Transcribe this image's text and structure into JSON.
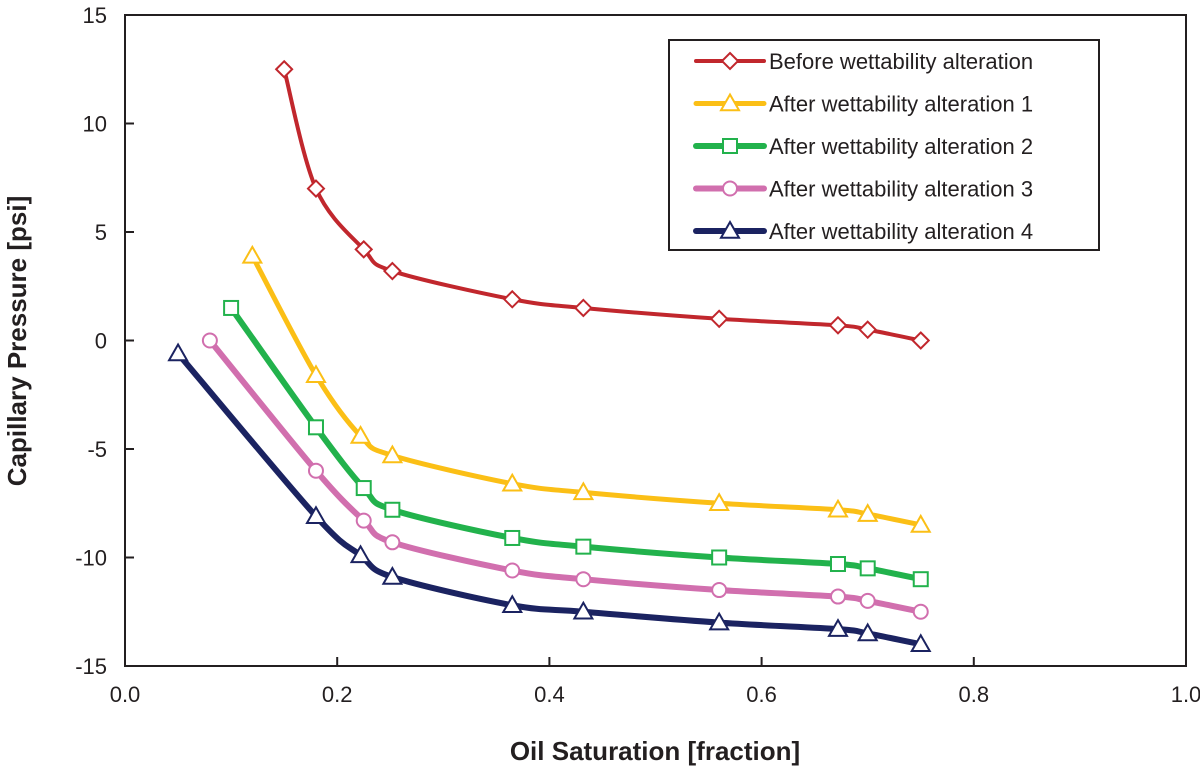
{
  "chart_data": {
    "type": "line",
    "title": "",
    "xlabel": "Oil Saturation [fraction]",
    "ylabel": "Capillary Pressure [psi]",
    "xlim": [
      0.0,
      1.0
    ],
    "ylim": [
      -15,
      15
    ],
    "x_ticks": [
      0.0,
      0.2,
      0.4,
      0.6,
      0.8,
      1.0
    ],
    "x_tick_labels": [
      "0.0",
      "0.2",
      "0.4",
      "0.6",
      "0.8",
      "1.0"
    ],
    "y_ticks": [
      15,
      10,
      5,
      0,
      -5,
      -10,
      -15
    ],
    "y_tick_labels": [
      "15",
      "10",
      "5",
      "0",
      "-5",
      "-10",
      "-15"
    ],
    "grid": false,
    "legend_position": "top-right",
    "series": [
      {
        "name": "Before wettability alteration",
        "color": "#c1272d",
        "marker": "diamond",
        "x": [
          0.15,
          0.18,
          0.225,
          0.252,
          0.365,
          0.432,
          0.56,
          0.672,
          0.7,
          0.75
        ],
        "y": [
          12.5,
          7.0,
          4.2,
          3.2,
          1.9,
          1.5,
          1.0,
          0.7,
          0.5,
          0.0
        ]
      },
      {
        "name": "After wettability alteration 1",
        "color": "#fbbf16",
        "marker": "triangle",
        "x": [
          0.12,
          0.18,
          0.222,
          0.252,
          0.365,
          0.432,
          0.56,
          0.672,
          0.7,
          0.75
        ],
        "y": [
          3.9,
          -1.6,
          -4.4,
          -5.3,
          -6.6,
          -7.0,
          -7.5,
          -7.8,
          -8.0,
          -8.5
        ]
      },
      {
        "name": "After wettability alteration 2",
        "color": "#22b24c",
        "marker": "square",
        "x": [
          0.1,
          0.18,
          0.225,
          0.252,
          0.365,
          0.432,
          0.56,
          0.672,
          0.7,
          0.75
        ],
        "y": [
          1.5,
          -4.0,
          -6.8,
          -7.8,
          -9.1,
          -9.5,
          -10.0,
          -10.3,
          -10.5,
          -11.0
        ]
      },
      {
        "name": "After wettability alteration 3",
        "color": "#d16fae",
        "marker": "circle",
        "x": [
          0.08,
          0.18,
          0.225,
          0.252,
          0.365,
          0.432,
          0.56,
          0.672,
          0.7,
          0.75
        ],
        "y": [
          0.0,
          -6.0,
          -8.3,
          -9.3,
          -10.6,
          -11.0,
          -11.5,
          -11.8,
          -12.0,
          -12.5
        ]
      },
      {
        "name": "After wettability alteration 4",
        "color": "#1b2361",
        "marker": "triangle",
        "x": [
          0.05,
          0.18,
          0.222,
          0.252,
          0.365,
          0.432,
          0.56,
          0.672,
          0.7,
          0.75
        ],
        "y": [
          -0.6,
          -8.1,
          -9.9,
          -10.9,
          -12.2,
          -12.5,
          -13.0,
          -13.3,
          -13.5,
          -14.0
        ]
      }
    ]
  }
}
